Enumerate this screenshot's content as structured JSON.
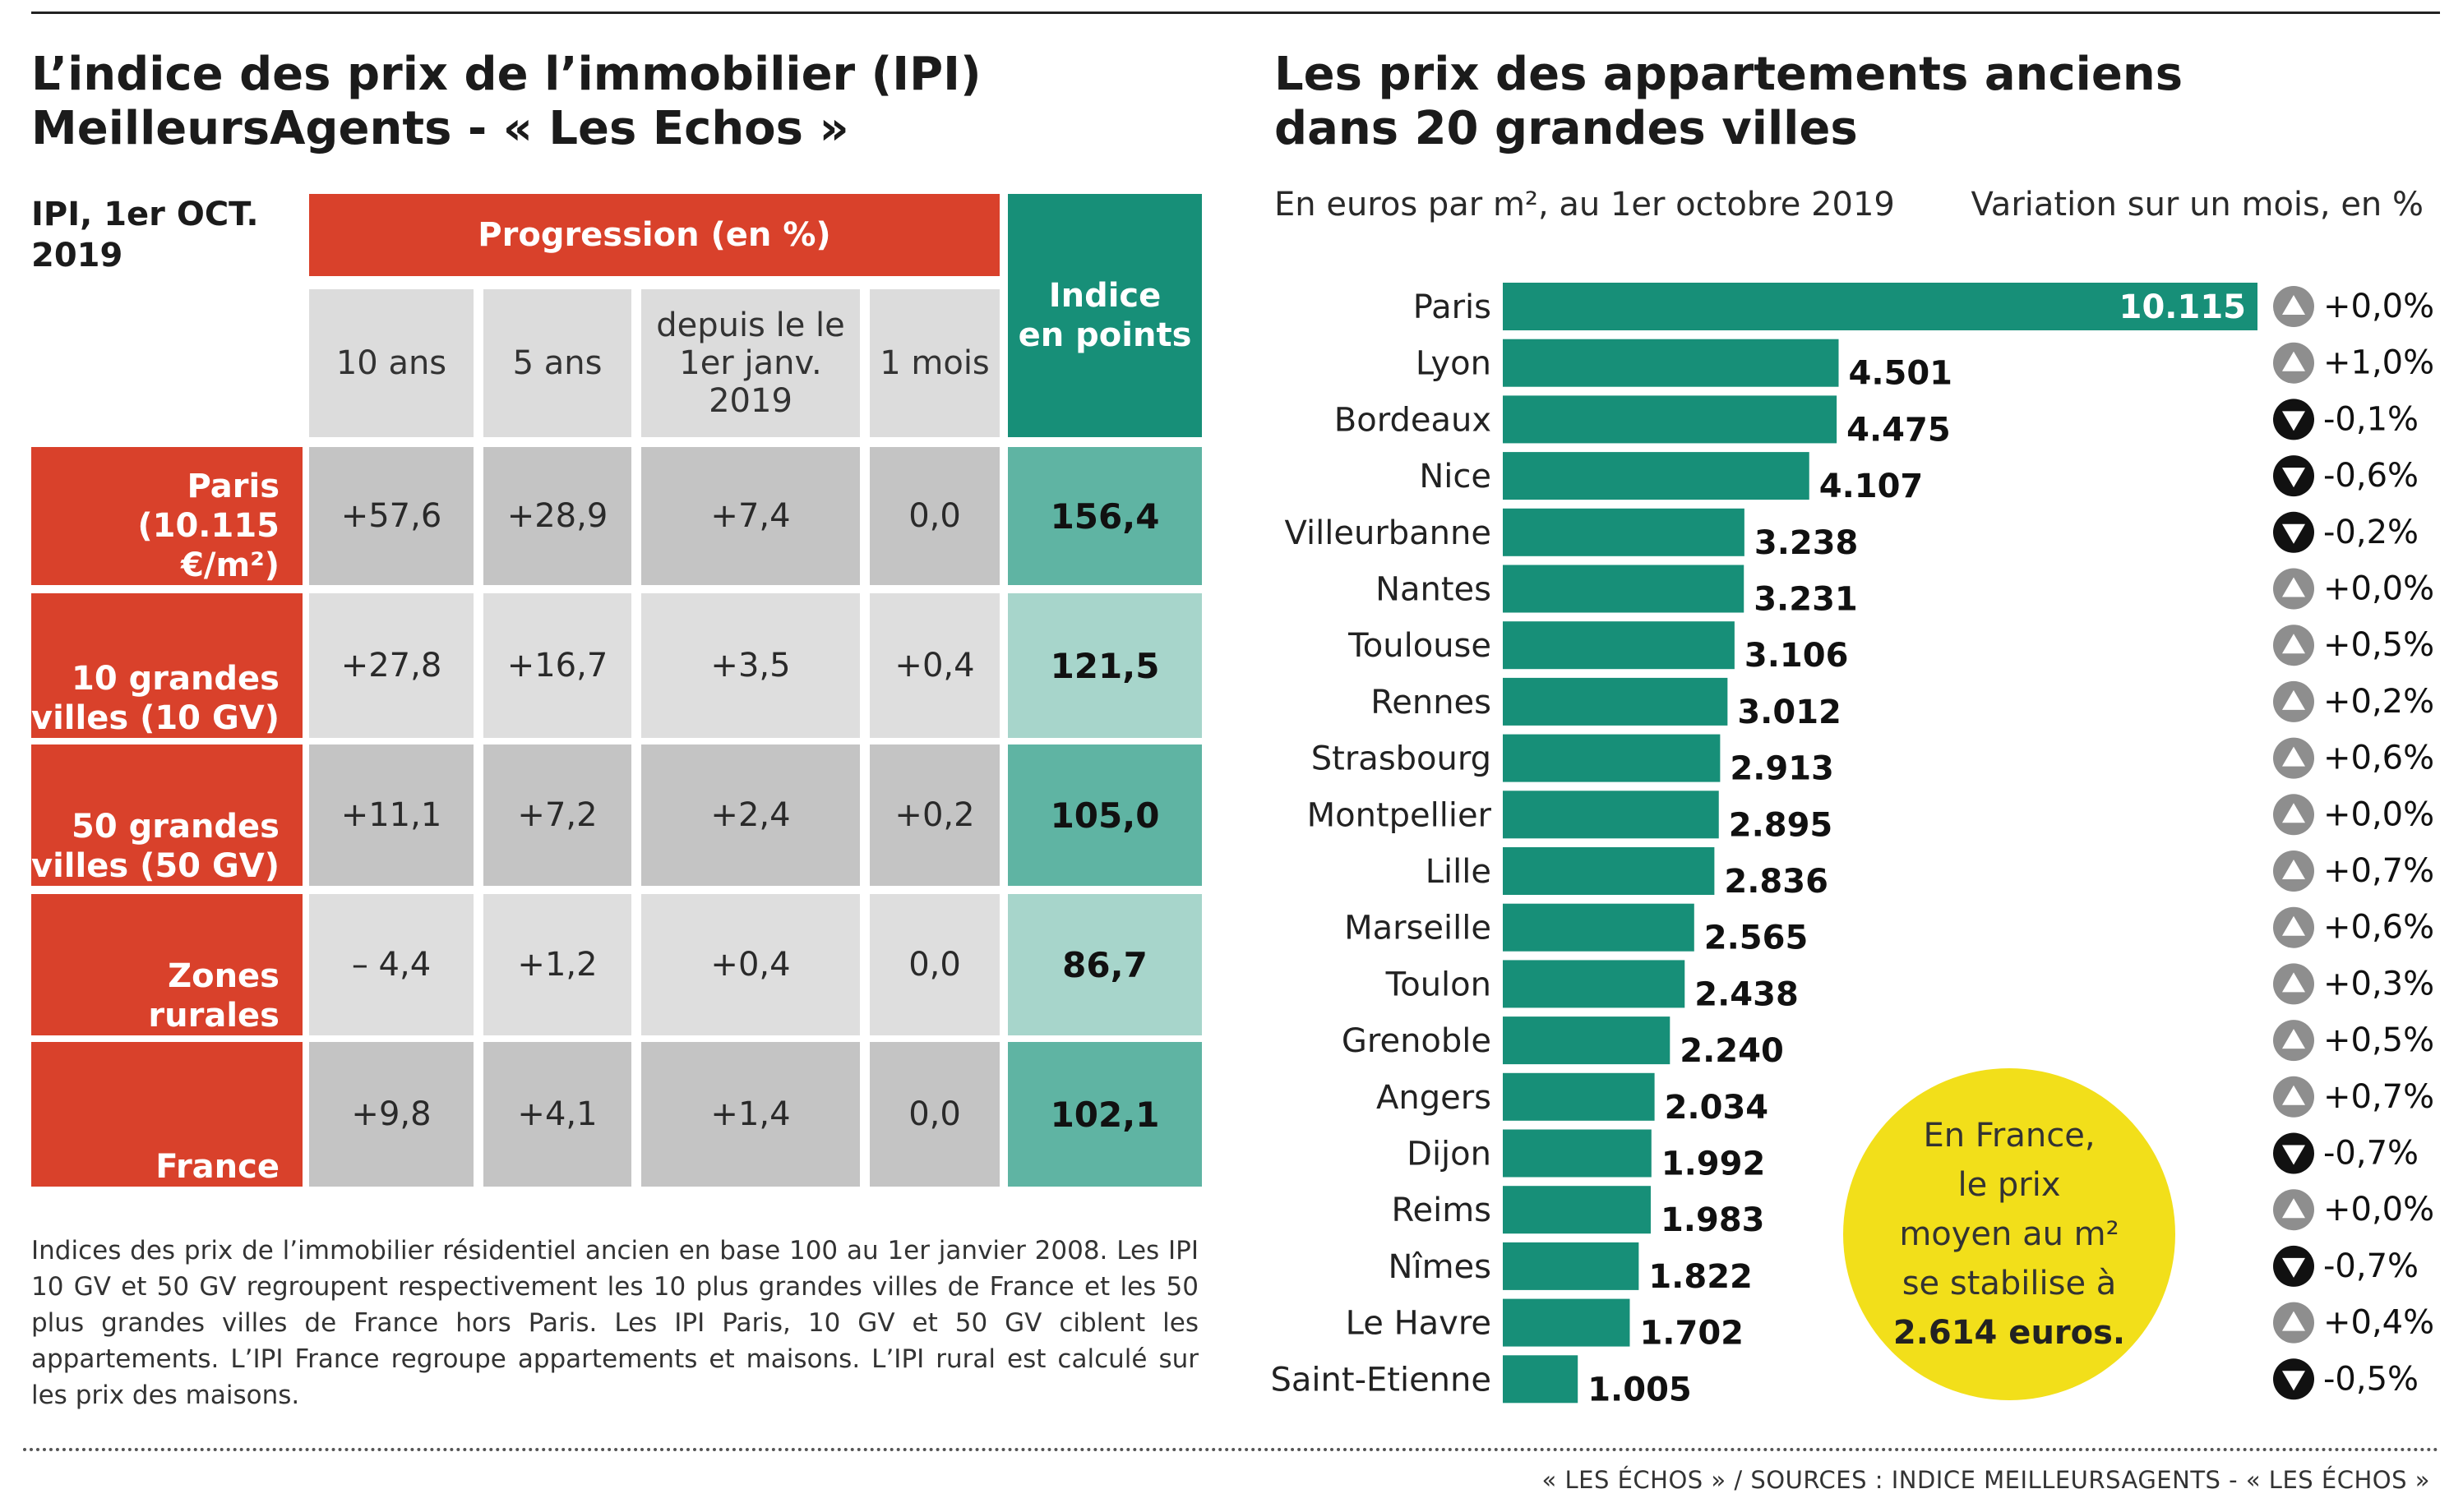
{
  "left": {
    "title_line1": "L’indice des prix de l’immobilier (IPI)",
    "title_line2": "MeilleursAgents - « Les Echos »",
    "ipi_label_line1": "IPI, 1er OCT.",
    "ipi_label_line2": "2019",
    "progression_header": "Progression (en %)",
    "index_header_line1": "Indice",
    "index_header_line2": "en points",
    "columns": [
      "10 ans",
      "5 ans",
      "depuis le le 1er janv. 2019",
      "1 mois"
    ],
    "rows": [
      {
        "label_line1": "Paris",
        "label_line2": "(10.115 €/m²)",
        "values": [
          "+57,6",
          "+28,9",
          "+7,4",
          "0,0"
        ],
        "index": "156,4"
      },
      {
        "label_line1": "10 grandes",
        "label_line2": "villes (10 GV)",
        "values": [
          "+27,8",
          "+16,7",
          "+3,5",
          "+0,4"
        ],
        "index": "121,5"
      },
      {
        "label_line1": "50 grandes",
        "label_line2": "villes (50 GV)",
        "values": [
          "+11,1",
          "+7,2",
          "+2,4",
          "+0,2"
        ],
        "index": "105,0"
      },
      {
        "label_line1": "Zones rurales",
        "label_line2": "",
        "values": [
          "– 4,4",
          "+1,2",
          "+0,4",
          "0,0"
        ],
        "index": "86,7"
      },
      {
        "label_line1": "France",
        "label_line2": "",
        "values": [
          "+9,8",
          "+4,1",
          "+1,4",
          "0,0"
        ],
        "index": "102,1"
      }
    ],
    "footnote": "Indices des prix de l’immobilier résidentiel ancien en base 100 au 1er janvier 2008. Les IPI 10 GV et 50 GV regroupent respectivement les 10 plus grandes villes de France et les 50 plus grandes villes de France hors Paris. Les IPI Paris, 10 GV et 50 GV ciblent les appartements. L’IPI France regroupe appartements et maisons. L’IPI rural est calculé sur les prix des maisons."
  },
  "right": {
    "title_line1": "Les prix des appartements anciens",
    "title_line2": "dans 20 grandes villes",
    "subtitle_left": "En euros par m², au 1er octobre 2019",
    "subtitle_right": "Variation sur un mois, en %",
    "bubble_line1": "En France,",
    "bubble_line2": "le prix",
    "bubble_line3": "moyen au m²",
    "bubble_line4": "se stabilise à",
    "bubble_line5": "2.614 euros."
  },
  "colors": {
    "accent_red": "#d9412b",
    "accent_green": "#178f78",
    "bubble_yellow": "#f2df1a"
  },
  "chart_data": {
    "type": "bar",
    "orientation": "horizontal",
    "title": "Les prix des appartements anciens dans 20 grandes villes",
    "xlabel": "En euros par m², au 1er octobre 2019",
    "categories": [
      "Paris",
      "Lyon",
      "Bordeaux",
      "Nice",
      "Villeurbanne",
      "Nantes",
      "Toulouse",
      "Rennes",
      "Strasbourg",
      "Montpellier",
      "Lille",
      "Marseille",
      "Toulon",
      "Grenoble",
      "Angers",
      "Dijon",
      "Reims",
      "Nîmes",
      "Le Havre",
      "Saint-Etienne"
    ],
    "values": [
      10115,
      4501,
      4475,
      4107,
      3238,
      3231,
      3106,
      3012,
      2913,
      2895,
      2836,
      2565,
      2438,
      2240,
      2034,
      1992,
      1983,
      1822,
      1702,
      1005
    ],
    "value_labels": [
      "10.115",
      "4.501",
      "4.475",
      "4.107",
      "3.238",
      "3.231",
      "3.106",
      "3.012",
      "2.913",
      "2.895",
      "2.836",
      "2.565",
      "2.438",
      "2.240",
      "2.034",
      "1.992",
      "1.983",
      "1.822",
      "1.702",
      "1.005"
    ],
    "variation_label": "Variation sur un mois, en %",
    "variations": [
      "+0,0%",
      "+1,0%",
      "-0,1%",
      "-0,6%",
      "-0,2%",
      "+0,0%",
      "+0,5%",
      "+0,2%",
      "+0,6%",
      "+0,0%",
      "+0,7%",
      "+0,6%",
      "+0,3%",
      "+0,5%",
      "+0,7%",
      "-0,7%",
      "+0,0%",
      "-0,7%",
      "+0,4%",
      "-0,5%"
    ],
    "variation_direction": [
      "up",
      "up",
      "down",
      "down",
      "down",
      "up",
      "up",
      "up",
      "up",
      "up",
      "up",
      "up",
      "up",
      "up",
      "up",
      "down",
      "up",
      "down",
      "up",
      "down"
    ],
    "bar_color": "#178f78",
    "grid": false
  },
  "source": "« LES ÉCHOS » / SOURCES : INDICE MEILLEURSAGENTS - « LES ÉCHOS »"
}
